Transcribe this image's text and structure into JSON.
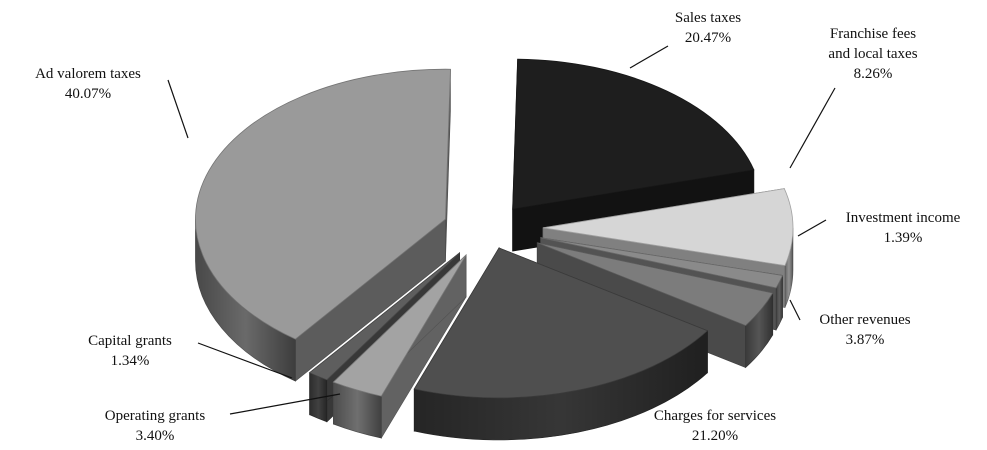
{
  "chart_data": {
    "type": "pie",
    "title": "",
    "exploded": true,
    "three_d": true,
    "slices": [
      {
        "label": "Sales taxes",
        "value": 20.47,
        "display": "20.47%",
        "color": "#1e1e1e"
      },
      {
        "label": "Franchise fees and local taxes",
        "value": 8.26,
        "display": "8.26%",
        "color": "#d6d6d6"
      },
      {
        "label": "Investment income",
        "value": 1.39,
        "display": "1.39%",
        "color": "#8a8a8a"
      },
      {
        "label": "Other revenues",
        "value": 3.87,
        "display": "3.87%",
        "color": "#7c7c7c"
      },
      {
        "label": "Charges for services",
        "value": 21.2,
        "display": "21.20%",
        "color": "#4f4f4f"
      },
      {
        "label": "Operating grants",
        "value": 3.4,
        "display": "3.40%",
        "color": "#a3a3a3"
      },
      {
        "label": "Capital grants",
        "value": 1.34,
        "display": "1.34%",
        "color": "#5e5e5e"
      },
      {
        "label": "Ad valorem taxes",
        "value": 40.07,
        "display": "40.07%",
        "color": "#9a9a9a"
      }
    ]
  }
}
